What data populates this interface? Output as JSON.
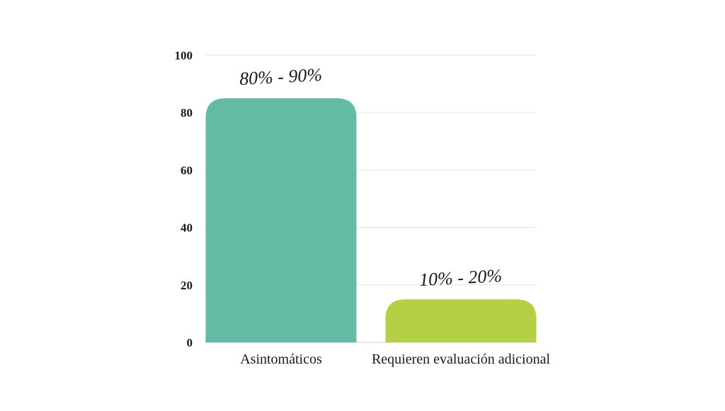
{
  "chart_data": {
    "type": "bar",
    "categories": [
      "Asintomáticos",
      "Requieren evaluación adicional"
    ],
    "values": [
      85,
      15
    ],
    "data_labels": [
      "80% - 90%",
      "10% - 20%"
    ],
    "ylim": [
      0,
      100
    ],
    "yticks": [
      "0",
      "20",
      "40",
      "60",
      "80",
      "100"
    ],
    "grid": true,
    "colors": [
      "#63bba3",
      "#b3cf43"
    ]
  }
}
